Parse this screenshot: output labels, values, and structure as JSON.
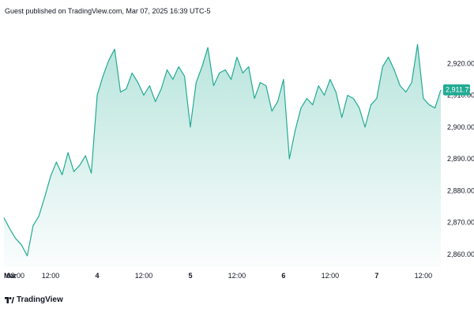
{
  "header": {
    "published": "Guest published on TradingView.com, Mar 07, 2025 16:39 UTC-5"
  },
  "footer": {
    "brand": "TradingView"
  },
  "colors": {
    "line": "#22ab94",
    "fill_top": "#22ab94",
    "badge": "#22ab94"
  },
  "chart_data": {
    "type": "area",
    "title": "",
    "xlabel": "",
    "ylabel": "",
    "ylim": [
      2856,
      2933
    ],
    "grid": false,
    "y_ticks": [
      "2,860.000",
      "2,870.000",
      "2,880.000",
      "2,890.000",
      "2,900.000",
      "2,910.000",
      "2,920.000"
    ],
    "x_ticks": [
      "Mar",
      "03:00",
      "12:00",
      "4",
      "12:00",
      "5",
      "12:00",
      "6",
      "12:00",
      "7",
      "12:00"
    ],
    "last_value": 2911.715,
    "last_value_label": "2,911.715",
    "series": [
      {
        "x": [
          "Mar 3 00:00",
          "Mar 3 01:30",
          "Mar 3 03:00",
          "Mar 3 04:30",
          "Mar 3 06:00",
          "Mar 3 07:30",
          "Mar 3 09:00",
          "Mar 3 10:30",
          "Mar 3 12:00",
          "Mar 3 13:30",
          "Mar 3 15:00",
          "Mar 3 16:30",
          "Mar 3 18:00",
          "Mar 3 19:30",
          "Mar 3 21:00",
          "Mar 3 22:30",
          "Mar 4 00:00",
          "Mar 4 01:30",
          "Mar 4 03:00",
          "Mar 4 04:30",
          "Mar 4 06:00",
          "Mar 4 07:30",
          "Mar 4 09:00",
          "Mar 4 10:30",
          "Mar 4 12:00",
          "Mar 4 13:30",
          "Mar 4 15:00",
          "Mar 4 16:30",
          "Mar 4 18:00",
          "Mar 4 19:30",
          "Mar 4 21:00",
          "Mar 4 22:30",
          "Mar 5 00:00",
          "Mar 5 01:30",
          "Mar 5 03:00",
          "Mar 5 04:30",
          "Mar 5 06:00",
          "Mar 5 07:30",
          "Mar 5 09:00",
          "Mar 5 10:30",
          "Mar 5 12:00",
          "Mar 5 13:30",
          "Mar 5 15:00",
          "Mar 5 16:30",
          "Mar 5 18:00",
          "Mar 5 19:30",
          "Mar 5 21:00",
          "Mar 5 22:30",
          "Mar 6 00:00",
          "Mar 6 01:30",
          "Mar 6 03:00",
          "Mar 6 04:30",
          "Mar 6 06:00",
          "Mar 6 07:30",
          "Mar 6 09:00",
          "Mar 6 10:30",
          "Mar 6 12:00",
          "Mar 6 13:30",
          "Mar 6 15:00",
          "Mar 6 16:30",
          "Mar 6 18:00",
          "Mar 6 19:30",
          "Mar 6 21:00",
          "Mar 6 22:30",
          "Mar 7 00:00",
          "Mar 7 01:30",
          "Mar 7 03:00",
          "Mar 7 04:30",
          "Mar 7 06:00",
          "Mar 7 07:30",
          "Mar 7 09:00",
          "Mar 7 10:30",
          "Mar 7 12:00",
          "Mar 7 13:30",
          "Mar 7 15:00",
          "Mar 7 16:30"
        ],
        "values": [
          2871.5,
          2868,
          2865,
          2863,
          2859.5,
          2869,
          2872,
          2878,
          2884.5,
          2889,
          2885,
          2892,
          2886,
          2888,
          2891,
          2885.5,
          2910,
          2916,
          2921,
          2924.5,
          2911,
          2912,
          2917,
          2914,
          2910,
          2913,
          2908,
          2912,
          2918,
          2915,
          2919,
          2916,
          2900,
          2914,
          2919,
          2925,
          2913,
          2917,
          2918,
          2915,
          2922,
          2917,
          2919,
          2909,
          2914,
          2913,
          2905,
          2908,
          2915,
          2890,
          2899,
          2906,
          2909,
          2907,
          2913,
          2910,
          2915,
          2911,
          2903,
          2910,
          2909,
          2906,
          2900,
          2907,
          2909,
          2919,
          2922,
          2918,
          2913,
          2911,
          2914,
          2926,
          2909,
          2907,
          2906,
          2911.7
        ]
      }
    ]
  }
}
